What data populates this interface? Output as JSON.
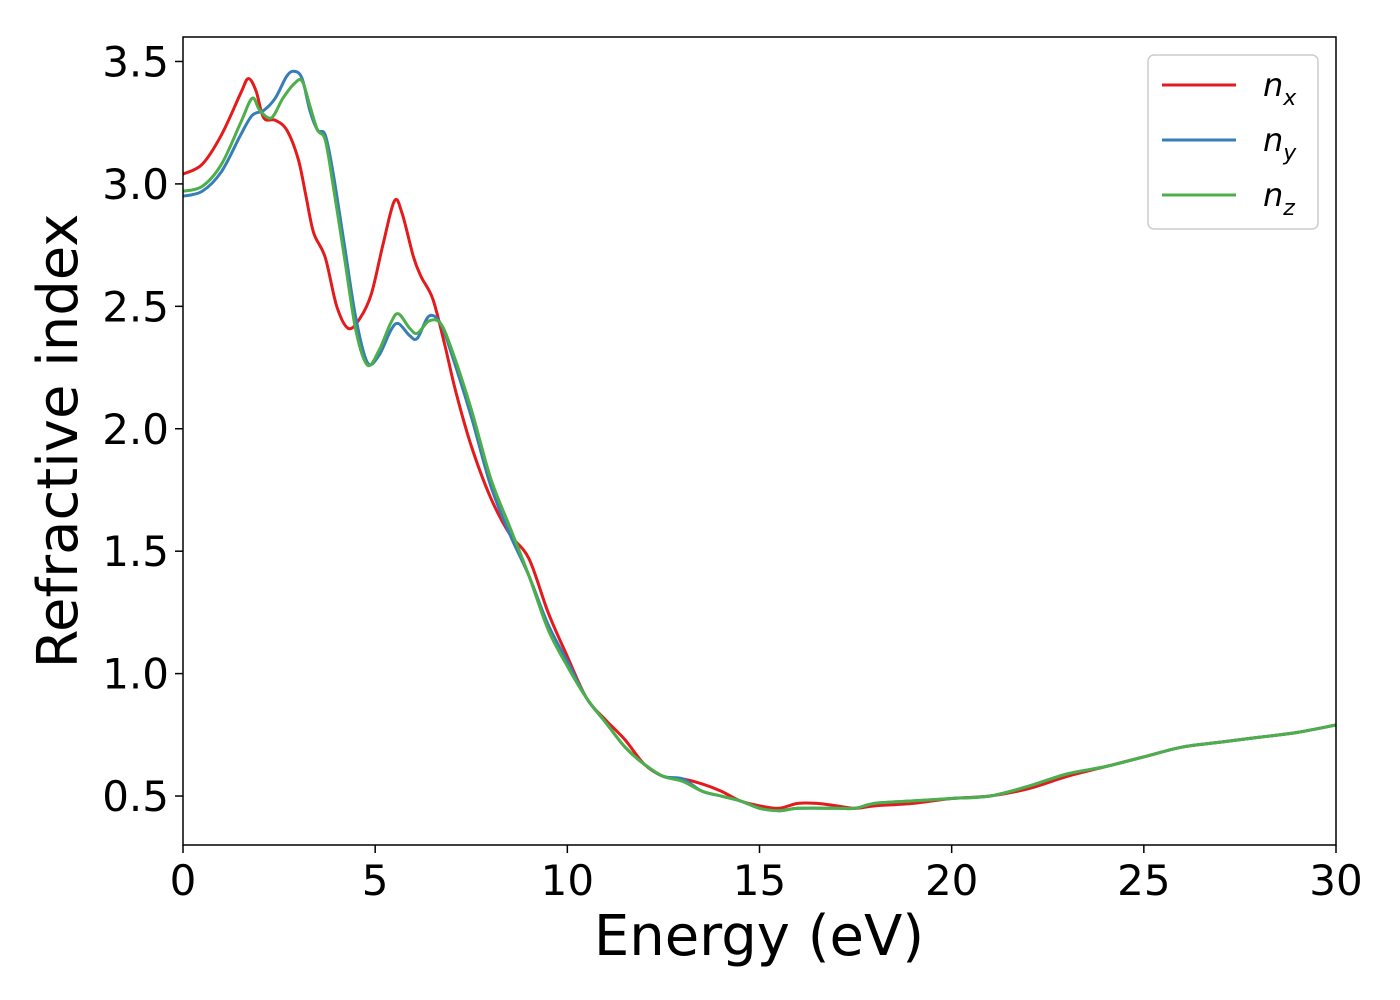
{
  "chart_data": {
    "type": "line",
    "xlabel": "Energy (eV)",
    "ylabel": "Refractive index",
    "xlim": [
      0,
      30
    ],
    "ylim": [
      0.3,
      3.6
    ],
    "xticks": [
      0,
      5,
      10,
      15,
      20,
      25,
      30
    ],
    "xtick_labels": [
      "0",
      "5",
      "10",
      "15",
      "20",
      "25",
      "30"
    ],
    "yticks": [
      0.5,
      1.0,
      1.5,
      2.0,
      2.5,
      3.0,
      3.5
    ],
    "ytick_labels": [
      "0.5",
      "1.0",
      "1.5",
      "2.0",
      "2.5",
      "3.0",
      "3.5"
    ],
    "grid": false,
    "legend_position": "top-right",
    "series": [
      {
        "name": "n",
        "subscript": "x",
        "color": "#e41a1c",
        "points": [
          [
            0,
            3.04
          ],
          [
            0.5,
            3.08
          ],
          [
            1.0,
            3.2
          ],
          [
            1.5,
            3.37
          ],
          [
            1.7,
            3.43
          ],
          [
            1.9,
            3.38
          ],
          [
            2.1,
            3.27
          ],
          [
            2.4,
            3.26
          ],
          [
            2.7,
            3.22
          ],
          [
            3.0,
            3.1
          ],
          [
            3.2,
            2.95
          ],
          [
            3.4,
            2.8
          ],
          [
            3.7,
            2.7
          ],
          [
            4.0,
            2.5
          ],
          [
            4.3,
            2.41
          ],
          [
            4.6,
            2.45
          ],
          [
            4.9,
            2.55
          ],
          [
            5.2,
            2.75
          ],
          [
            5.5,
            2.93
          ],
          [
            5.7,
            2.88
          ],
          [
            6.0,
            2.7
          ],
          [
            6.2,
            2.62
          ],
          [
            6.5,
            2.53
          ],
          [
            6.8,
            2.35
          ],
          [
            7.1,
            2.15
          ],
          [
            7.5,
            1.93
          ],
          [
            8.0,
            1.72
          ],
          [
            8.5,
            1.57
          ],
          [
            9.0,
            1.47
          ],
          [
            9.5,
            1.25
          ],
          [
            10.0,
            1.07
          ],
          [
            10.5,
            0.9
          ],
          [
            11.0,
            0.81
          ],
          [
            11.5,
            0.73
          ],
          [
            12.0,
            0.63
          ],
          [
            12.5,
            0.58
          ],
          [
            13.0,
            0.57
          ],
          [
            13.5,
            0.55
          ],
          [
            14.0,
            0.52
          ],
          [
            14.5,
            0.48
          ],
          [
            15.0,
            0.46
          ],
          [
            15.5,
            0.45
          ],
          [
            16.0,
            0.47
          ],
          [
            16.5,
            0.47
          ],
          [
            17.0,
            0.46
          ],
          [
            17.5,
            0.45
          ],
          [
            18.0,
            0.46
          ],
          [
            19.0,
            0.47
          ],
          [
            20.0,
            0.49
          ],
          [
            21.0,
            0.5
          ],
          [
            22.0,
            0.53
          ],
          [
            23.0,
            0.58
          ],
          [
            24.0,
            0.62
          ],
          [
            25.0,
            0.66
          ],
          [
            26.0,
            0.7
          ],
          [
            27.0,
            0.72
          ],
          [
            28.0,
            0.74
          ],
          [
            29.0,
            0.76
          ],
          [
            30.0,
            0.79
          ]
        ]
      },
      {
        "name": "n",
        "subscript": "y",
        "color": "#377eb8",
        "points": [
          [
            0,
            2.95
          ],
          [
            0.5,
            2.97
          ],
          [
            1.0,
            3.05
          ],
          [
            1.5,
            3.2
          ],
          [
            1.8,
            3.28
          ],
          [
            2.1,
            3.3
          ],
          [
            2.4,
            3.35
          ],
          [
            2.7,
            3.44
          ],
          [
            2.9,
            3.46
          ],
          [
            3.1,
            3.43
          ],
          [
            3.3,
            3.3
          ],
          [
            3.5,
            3.22
          ],
          [
            3.7,
            3.2
          ],
          [
            3.9,
            3.05
          ],
          [
            4.2,
            2.75
          ],
          [
            4.5,
            2.45
          ],
          [
            4.8,
            2.27
          ],
          [
            5.1,
            2.3
          ],
          [
            5.4,
            2.4
          ],
          [
            5.6,
            2.43
          ],
          [
            5.9,
            2.38
          ],
          [
            6.1,
            2.37
          ],
          [
            6.4,
            2.46
          ],
          [
            6.7,
            2.43
          ],
          [
            7.0,
            2.3
          ],
          [
            7.5,
            2.05
          ],
          [
            8.0,
            1.77
          ],
          [
            8.5,
            1.57
          ],
          [
            9.0,
            1.4
          ],
          [
            9.5,
            1.2
          ],
          [
            10.0,
            1.05
          ],
          [
            10.5,
            0.9
          ],
          [
            11.0,
            0.8
          ],
          [
            11.5,
            0.7
          ],
          [
            12.0,
            0.63
          ],
          [
            12.5,
            0.58
          ],
          [
            13.0,
            0.57
          ],
          [
            13.5,
            0.52
          ],
          [
            14.0,
            0.5
          ],
          [
            14.5,
            0.48
          ],
          [
            15.0,
            0.45
          ],
          [
            15.5,
            0.44
          ],
          [
            16.0,
            0.45
          ],
          [
            17.0,
            0.45
          ],
          [
            17.5,
            0.45
          ],
          [
            18.0,
            0.47
          ],
          [
            19.0,
            0.48
          ],
          [
            20.0,
            0.49
          ],
          [
            21.0,
            0.5
          ],
          [
            22.0,
            0.54
          ],
          [
            23.0,
            0.59
          ],
          [
            24.0,
            0.62
          ],
          [
            25.0,
            0.66
          ],
          [
            26.0,
            0.7
          ],
          [
            27.0,
            0.72
          ],
          [
            28.0,
            0.74
          ],
          [
            29.0,
            0.76
          ],
          [
            30.0,
            0.79
          ]
        ]
      },
      {
        "name": "n",
        "subscript": "z",
        "color": "#4daf4a",
        "points": [
          [
            0,
            2.97
          ],
          [
            0.5,
            2.99
          ],
          [
            1.0,
            3.08
          ],
          [
            1.5,
            3.25
          ],
          [
            1.8,
            3.35
          ],
          [
            2.0,
            3.3
          ],
          [
            2.3,
            3.27
          ],
          [
            2.6,
            3.35
          ],
          [
            2.9,
            3.41
          ],
          [
            3.1,
            3.42
          ],
          [
            3.3,
            3.32
          ],
          [
            3.5,
            3.22
          ],
          [
            3.7,
            3.18
          ],
          [
            3.9,
            3.0
          ],
          [
            4.2,
            2.7
          ],
          [
            4.5,
            2.4
          ],
          [
            4.8,
            2.26
          ],
          [
            5.1,
            2.32
          ],
          [
            5.4,
            2.43
          ],
          [
            5.6,
            2.47
          ],
          [
            5.9,
            2.41
          ],
          [
            6.1,
            2.39
          ],
          [
            6.4,
            2.44
          ],
          [
            6.7,
            2.43
          ],
          [
            7.0,
            2.32
          ],
          [
            7.5,
            2.08
          ],
          [
            8.0,
            1.8
          ],
          [
            8.5,
            1.6
          ],
          [
            9.0,
            1.4
          ],
          [
            9.5,
            1.18
          ],
          [
            10.0,
            1.03
          ],
          [
            10.5,
            0.9
          ],
          [
            11.0,
            0.8
          ],
          [
            11.5,
            0.7
          ],
          [
            12.0,
            0.63
          ],
          [
            12.5,
            0.58
          ],
          [
            13.0,
            0.56
          ],
          [
            13.5,
            0.52
          ],
          [
            14.0,
            0.5
          ],
          [
            14.5,
            0.48
          ],
          [
            15.0,
            0.45
          ],
          [
            15.5,
            0.44
          ],
          [
            16.0,
            0.45
          ],
          [
            17.0,
            0.45
          ],
          [
            17.5,
            0.45
          ],
          [
            18.0,
            0.47
          ],
          [
            19.0,
            0.48
          ],
          [
            20.0,
            0.49
          ],
          [
            21.0,
            0.5
          ],
          [
            22.0,
            0.54
          ],
          [
            23.0,
            0.59
          ],
          [
            24.0,
            0.62
          ],
          [
            25.0,
            0.66
          ],
          [
            26.0,
            0.7
          ],
          [
            27.0,
            0.72
          ],
          [
            28.0,
            0.74
          ],
          [
            29.0,
            0.76
          ],
          [
            30.0,
            0.79
          ]
        ]
      }
    ]
  }
}
